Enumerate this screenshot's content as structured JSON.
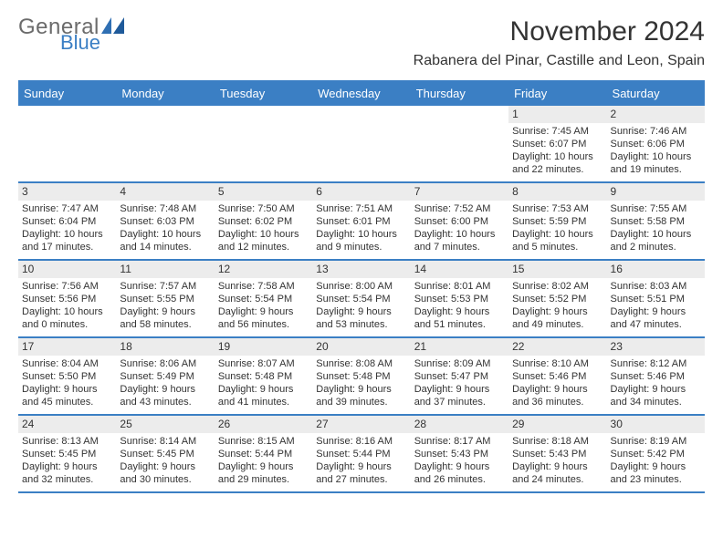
{
  "brand": {
    "general": "General",
    "blue": "Blue",
    "icon_color": "#2f6fb3"
  },
  "title": "November 2024",
  "location": "Rabanera del Pinar, Castille and Leon, Spain",
  "colors": {
    "header_bg": "#3b7fc4",
    "rule": "#3b7fc4",
    "daynum_bg": "#ececec",
    "text": "#333333"
  },
  "day_headers": [
    "Sunday",
    "Monday",
    "Tuesday",
    "Wednesday",
    "Thursday",
    "Friday",
    "Saturday"
  ],
  "weeks": [
    [
      null,
      null,
      null,
      null,
      null,
      {
        "n": "1",
        "sr": "Sunrise: 7:45 AM",
        "ss": "Sunset: 6:07 PM",
        "dl": "Daylight: 10 hours and 22 minutes."
      },
      {
        "n": "2",
        "sr": "Sunrise: 7:46 AM",
        "ss": "Sunset: 6:06 PM",
        "dl": "Daylight: 10 hours and 19 minutes."
      }
    ],
    [
      {
        "n": "3",
        "sr": "Sunrise: 7:47 AM",
        "ss": "Sunset: 6:04 PM",
        "dl": "Daylight: 10 hours and 17 minutes."
      },
      {
        "n": "4",
        "sr": "Sunrise: 7:48 AM",
        "ss": "Sunset: 6:03 PM",
        "dl": "Daylight: 10 hours and 14 minutes."
      },
      {
        "n": "5",
        "sr": "Sunrise: 7:50 AM",
        "ss": "Sunset: 6:02 PM",
        "dl": "Daylight: 10 hours and 12 minutes."
      },
      {
        "n": "6",
        "sr": "Sunrise: 7:51 AM",
        "ss": "Sunset: 6:01 PM",
        "dl": "Daylight: 10 hours and 9 minutes."
      },
      {
        "n": "7",
        "sr": "Sunrise: 7:52 AM",
        "ss": "Sunset: 6:00 PM",
        "dl": "Daylight: 10 hours and 7 minutes."
      },
      {
        "n": "8",
        "sr": "Sunrise: 7:53 AM",
        "ss": "Sunset: 5:59 PM",
        "dl": "Daylight: 10 hours and 5 minutes."
      },
      {
        "n": "9",
        "sr": "Sunrise: 7:55 AM",
        "ss": "Sunset: 5:58 PM",
        "dl": "Daylight: 10 hours and 2 minutes."
      }
    ],
    [
      {
        "n": "10",
        "sr": "Sunrise: 7:56 AM",
        "ss": "Sunset: 5:56 PM",
        "dl": "Daylight: 10 hours and 0 minutes."
      },
      {
        "n": "11",
        "sr": "Sunrise: 7:57 AM",
        "ss": "Sunset: 5:55 PM",
        "dl": "Daylight: 9 hours and 58 minutes."
      },
      {
        "n": "12",
        "sr": "Sunrise: 7:58 AM",
        "ss": "Sunset: 5:54 PM",
        "dl": "Daylight: 9 hours and 56 minutes."
      },
      {
        "n": "13",
        "sr": "Sunrise: 8:00 AM",
        "ss": "Sunset: 5:54 PM",
        "dl": "Daylight: 9 hours and 53 minutes."
      },
      {
        "n": "14",
        "sr": "Sunrise: 8:01 AM",
        "ss": "Sunset: 5:53 PM",
        "dl": "Daylight: 9 hours and 51 minutes."
      },
      {
        "n": "15",
        "sr": "Sunrise: 8:02 AM",
        "ss": "Sunset: 5:52 PM",
        "dl": "Daylight: 9 hours and 49 minutes."
      },
      {
        "n": "16",
        "sr": "Sunrise: 8:03 AM",
        "ss": "Sunset: 5:51 PM",
        "dl": "Daylight: 9 hours and 47 minutes."
      }
    ],
    [
      {
        "n": "17",
        "sr": "Sunrise: 8:04 AM",
        "ss": "Sunset: 5:50 PM",
        "dl": "Daylight: 9 hours and 45 minutes."
      },
      {
        "n": "18",
        "sr": "Sunrise: 8:06 AM",
        "ss": "Sunset: 5:49 PM",
        "dl": "Daylight: 9 hours and 43 minutes."
      },
      {
        "n": "19",
        "sr": "Sunrise: 8:07 AM",
        "ss": "Sunset: 5:48 PM",
        "dl": "Daylight: 9 hours and 41 minutes."
      },
      {
        "n": "20",
        "sr": "Sunrise: 8:08 AM",
        "ss": "Sunset: 5:48 PM",
        "dl": "Daylight: 9 hours and 39 minutes."
      },
      {
        "n": "21",
        "sr": "Sunrise: 8:09 AM",
        "ss": "Sunset: 5:47 PM",
        "dl": "Daylight: 9 hours and 37 minutes."
      },
      {
        "n": "22",
        "sr": "Sunrise: 8:10 AM",
        "ss": "Sunset: 5:46 PM",
        "dl": "Daylight: 9 hours and 36 minutes."
      },
      {
        "n": "23",
        "sr": "Sunrise: 8:12 AM",
        "ss": "Sunset: 5:46 PM",
        "dl": "Daylight: 9 hours and 34 minutes."
      }
    ],
    [
      {
        "n": "24",
        "sr": "Sunrise: 8:13 AM",
        "ss": "Sunset: 5:45 PM",
        "dl": "Daylight: 9 hours and 32 minutes."
      },
      {
        "n": "25",
        "sr": "Sunrise: 8:14 AM",
        "ss": "Sunset: 5:45 PM",
        "dl": "Daylight: 9 hours and 30 minutes."
      },
      {
        "n": "26",
        "sr": "Sunrise: 8:15 AM",
        "ss": "Sunset: 5:44 PM",
        "dl": "Daylight: 9 hours and 29 minutes."
      },
      {
        "n": "27",
        "sr": "Sunrise: 8:16 AM",
        "ss": "Sunset: 5:44 PM",
        "dl": "Daylight: 9 hours and 27 minutes."
      },
      {
        "n": "28",
        "sr": "Sunrise: 8:17 AM",
        "ss": "Sunset: 5:43 PM",
        "dl": "Daylight: 9 hours and 26 minutes."
      },
      {
        "n": "29",
        "sr": "Sunrise: 8:18 AM",
        "ss": "Sunset: 5:43 PM",
        "dl": "Daylight: 9 hours and 24 minutes."
      },
      {
        "n": "30",
        "sr": "Sunrise: 8:19 AM",
        "ss": "Sunset: 5:42 PM",
        "dl": "Daylight: 9 hours and 23 minutes."
      }
    ]
  ]
}
